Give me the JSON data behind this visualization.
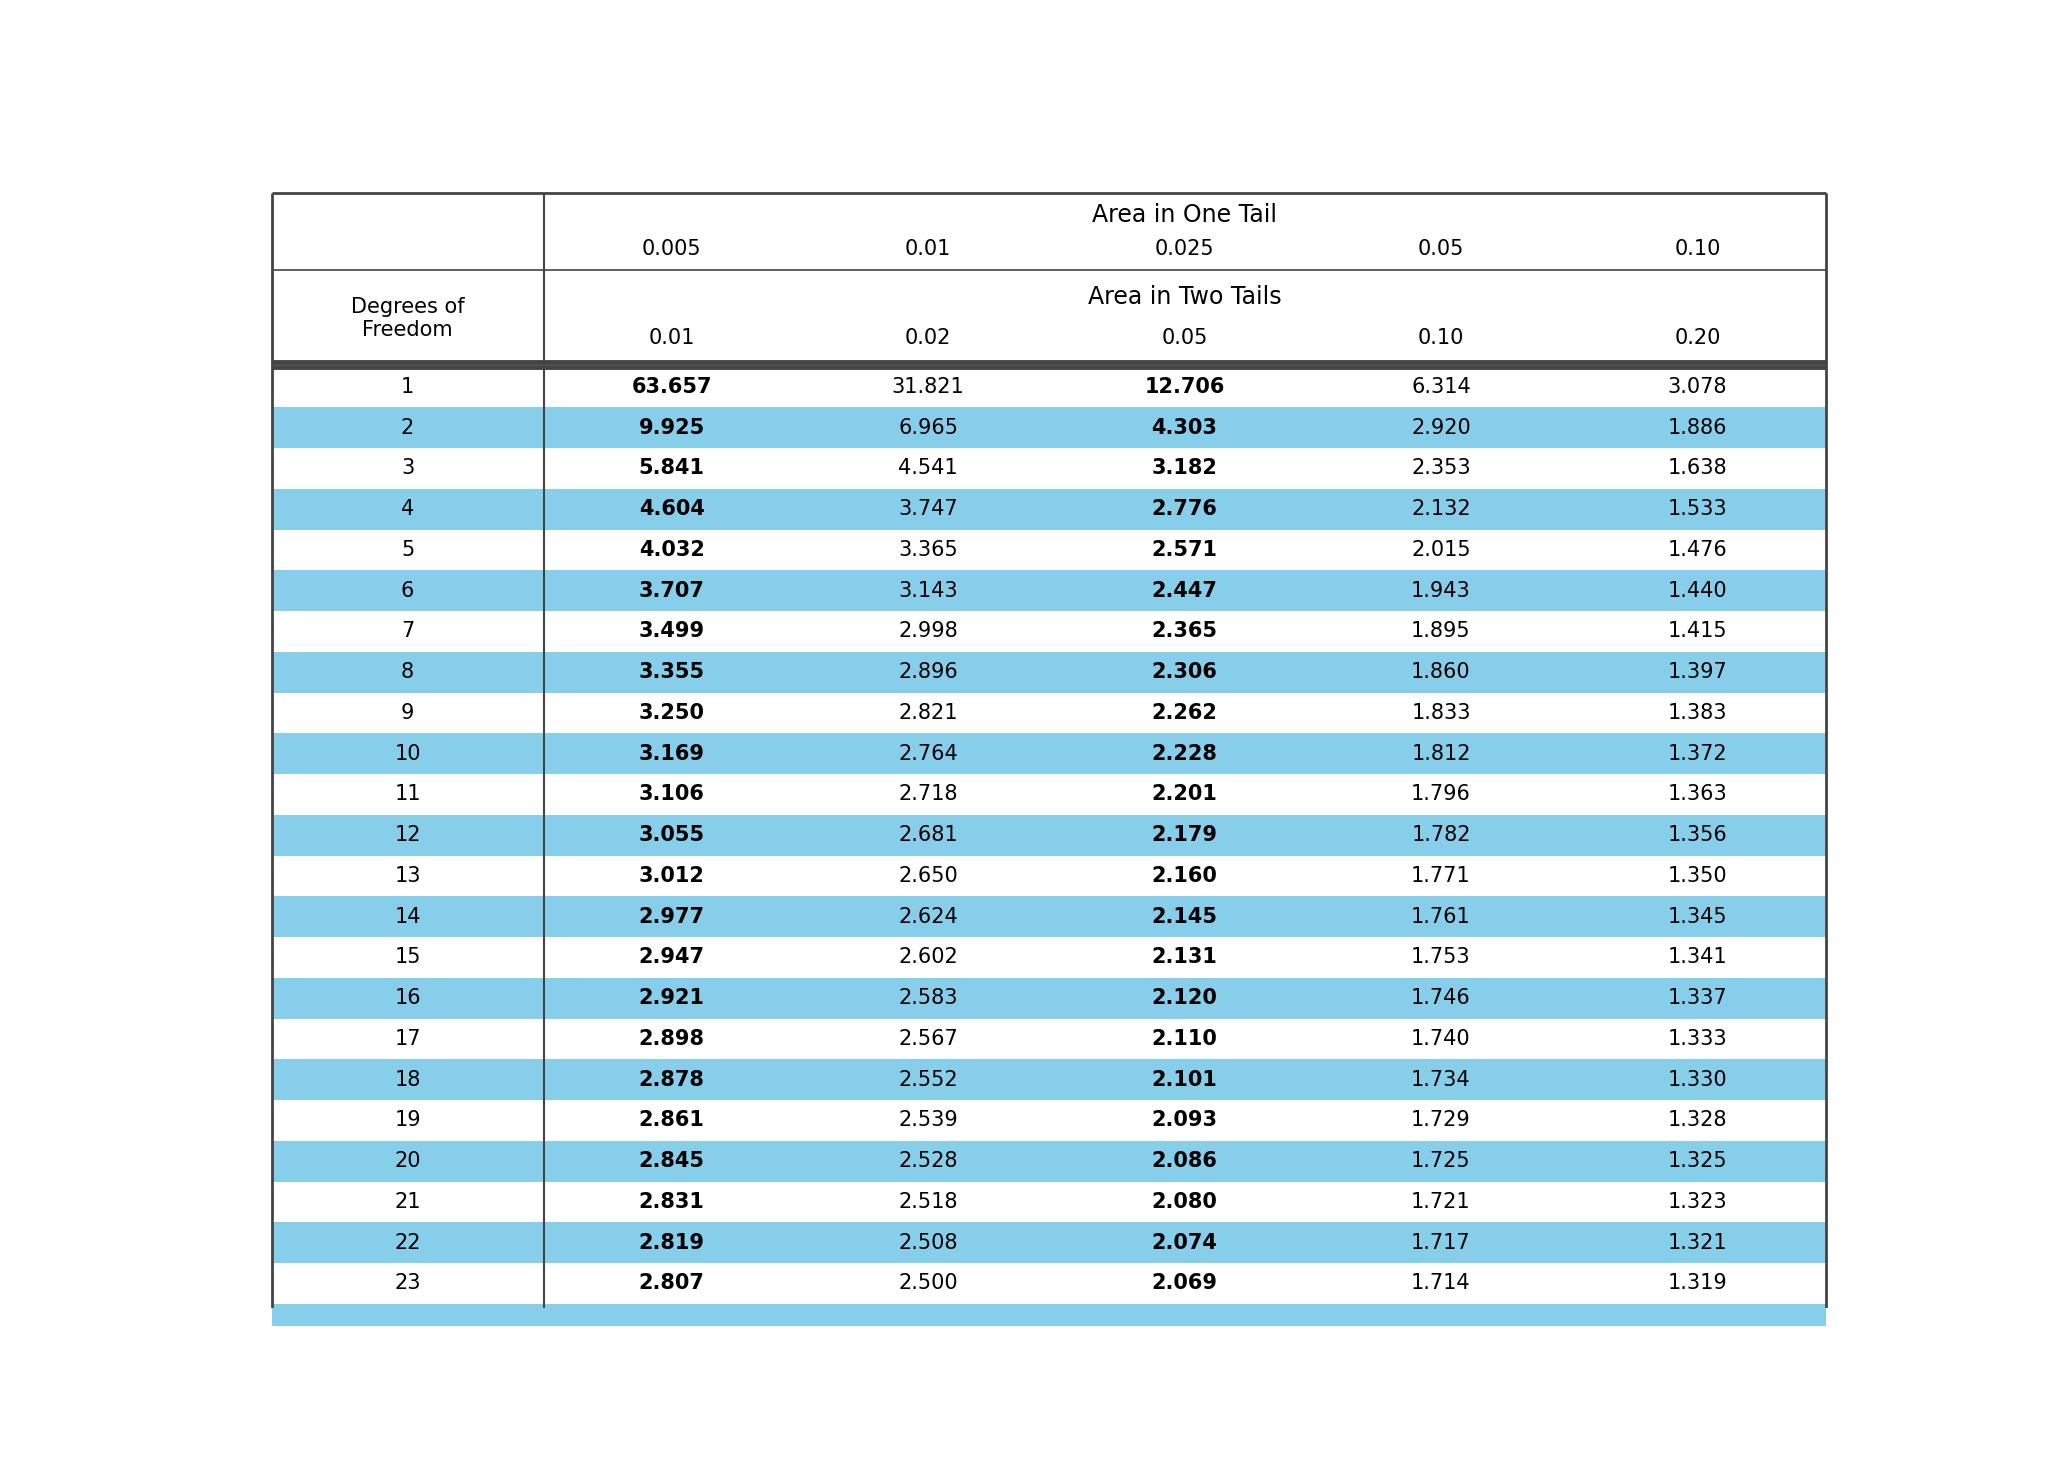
{
  "one_tail_label": "Area in One Tail",
  "two_tail_label": "Area in Two Tails",
  "one_tail_values": [
    "0.005",
    "0.01",
    "0.025",
    "0.05",
    "0.10"
  ],
  "two_tail_values": [
    "0.01",
    "0.02",
    "0.05",
    "0.10",
    "0.20"
  ],
  "df_label_line1": "Degrees of",
  "df_label_line2": "Freedom",
  "degrees_of_freedom": [
    "1",
    "2",
    "3",
    "4",
    "5",
    "6",
    "7",
    "8",
    "9",
    "10",
    "11",
    "12",
    "13",
    "14",
    "15",
    "16",
    "17",
    "18",
    "19",
    "20",
    "21",
    "22",
    "23"
  ],
  "col1": [
    "63.657",
    "9.925",
    "5.841",
    "4.604",
    "4.032",
    "3.707",
    "3.499",
    "3.355",
    "3.250",
    "3.169",
    "3.106",
    "3.055",
    "3.012",
    "2.977",
    "2.947",
    "2.921",
    "2.898",
    "2.878",
    "2.861",
    "2.845",
    "2.831",
    "2.819",
    "2.807"
  ],
  "col2": [
    "31.821",
    "6.965",
    "4.541",
    "3.747",
    "3.365",
    "3.143",
    "2.998",
    "2.896",
    "2.821",
    "2.764",
    "2.718",
    "2.681",
    "2.650",
    "2.624",
    "2.602",
    "2.583",
    "2.567",
    "2.552",
    "2.539",
    "2.528",
    "2.518",
    "2.508",
    "2.500"
  ],
  "col3": [
    "12.706",
    "4.303",
    "3.182",
    "2.776",
    "2.571",
    "2.447",
    "2.365",
    "2.306",
    "2.262",
    "2.228",
    "2.201",
    "2.179",
    "2.160",
    "2.145",
    "2.131",
    "2.120",
    "2.110",
    "2.101",
    "2.093",
    "2.086",
    "2.080",
    "2.074",
    "2.069"
  ],
  "col4": [
    "6.314",
    "2.920",
    "2.353",
    "2.132",
    "2.015",
    "1.943",
    "1.895",
    "1.860",
    "1.833",
    "1.812",
    "1.796",
    "1.782",
    "1.771",
    "1.761",
    "1.753",
    "1.746",
    "1.740",
    "1.734",
    "1.729",
    "1.725",
    "1.721",
    "1.717",
    "1.714"
  ],
  "col5": [
    "3.078",
    "1.886",
    "1.638",
    "1.533",
    "1.476",
    "1.440",
    "1.415",
    "1.397",
    "1.383",
    "1.372",
    "1.363",
    "1.356",
    "1.350",
    "1.345",
    "1.341",
    "1.337",
    "1.333",
    "1.330",
    "1.328",
    "1.325",
    "1.323",
    "1.321",
    "1.319"
  ],
  "light_blue": "#87CEEB",
  "white": "#FFFFFF",
  "border_color": "#444444",
  "bg_color": "#FFFFFF",
  "font_size_header": 15,
  "font_size_data": 15
}
